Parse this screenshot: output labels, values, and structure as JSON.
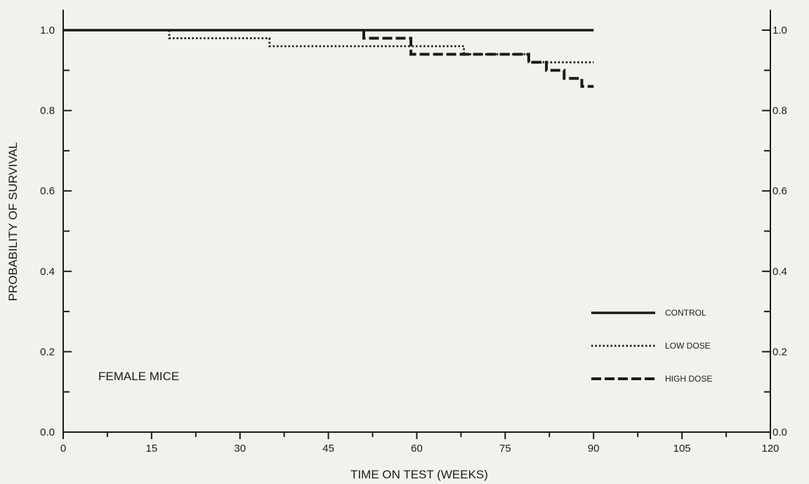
{
  "chart_data": {
    "type": "line",
    "xlabel": "TIME ON TEST (WEEKS)",
    "ylabel": "PROBABILITY OF SURVIVAL",
    "annotation": "FEMALE MICE",
    "xlim": [
      0,
      120
    ],
    "ylim": [
      0,
      1.0
    ],
    "x_ticks": [
      "0",
      "15",
      "30",
      "45",
      "60",
      "75",
      "90",
      "105",
      "120"
    ],
    "y_ticks_left": [
      "0.0",
      "0.2",
      "0.4",
      "0.6",
      "0.8",
      "1.0"
    ],
    "y_ticks_right": [
      "0.0",
      "0.2",
      "0.4",
      "0.6",
      "0.8",
      "1.0"
    ],
    "grid": false,
    "legend_position": "bottom-right",
    "series": [
      {
        "name": "CONTROL",
        "style": "solid",
        "points": [
          [
            0,
            1.0
          ],
          [
            90,
            1.0
          ]
        ]
      },
      {
        "name": "LOW DOSE",
        "style": "dotted",
        "points": [
          [
            18,
            1.0
          ],
          [
            18,
            0.98
          ],
          [
            35,
            0.98
          ],
          [
            35,
            0.96
          ],
          [
            68,
            0.96
          ],
          [
            68,
            0.94
          ],
          [
            79,
            0.94
          ],
          [
            79,
            0.92
          ],
          [
            90,
            0.92
          ]
        ]
      },
      {
        "name": "HIGH DOSE",
        "style": "dashed",
        "points": [
          [
            51,
            1.0
          ],
          [
            51,
            0.98
          ],
          [
            59,
            0.98
          ],
          [
            59,
            0.94
          ],
          [
            79,
            0.94
          ],
          [
            79,
            0.92
          ],
          [
            82,
            0.92
          ],
          [
            82,
            0.9
          ],
          [
            85,
            0.9
          ],
          [
            85,
            0.88
          ],
          [
            88,
            0.88
          ],
          [
            88,
            0.86
          ],
          [
            90,
            0.86
          ]
        ]
      }
    ]
  }
}
